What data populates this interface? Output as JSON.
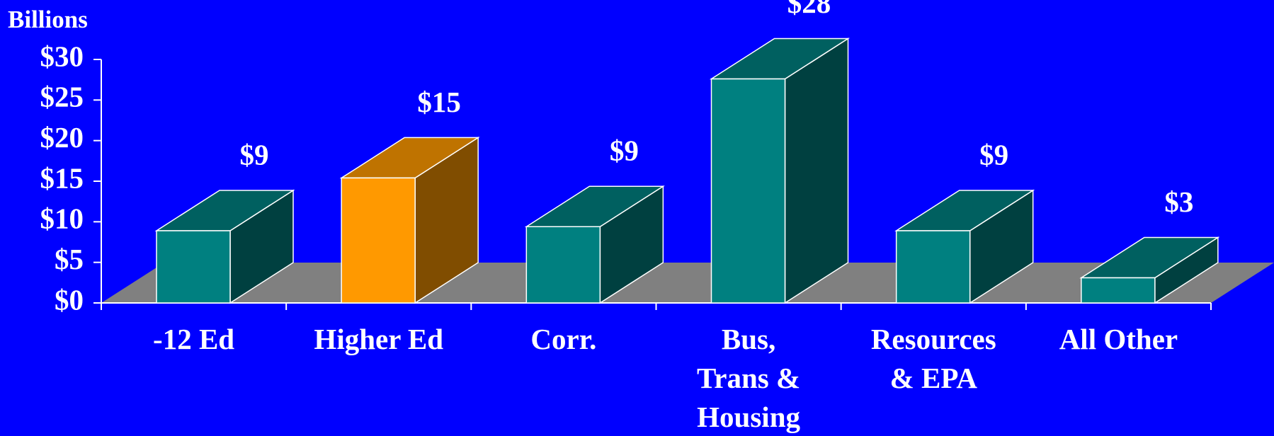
{
  "chart_data": {
    "type": "bar3d",
    "y_axis_label": "Billions",
    "categories": [
      "-12 Ed",
      "Higher Ed",
      "Corr.",
      "Bus,\nTrans &\nHousing",
      "Resources\n& EPA",
      "All Other"
    ],
    "values": [
      8.9,
      15.4,
      9.4,
      27.6,
      8.9,
      3.1
    ],
    "value_labels": [
      "$9",
      "$15",
      "$9",
      "$28",
      "$9",
      "$3"
    ],
    "colors": [
      "#008080",
      "#ff9900",
      "#008080",
      "#008080",
      "#008080",
      "#008080"
    ],
    "ylim": [
      0,
      30
    ],
    "yticks": [
      {
        "value": 0,
        "label": "$0"
      },
      {
        "value": 5,
        "label": "$5"
      },
      {
        "value": 10,
        "label": "$10"
      },
      {
        "value": 15,
        "label": "$15"
      },
      {
        "value": 20,
        "label": "$20"
      },
      {
        "value": 25,
        "label": "$25"
      },
      {
        "value": 30,
        "label": "$30"
      }
    ],
    "floor_color": "#808080"
  }
}
